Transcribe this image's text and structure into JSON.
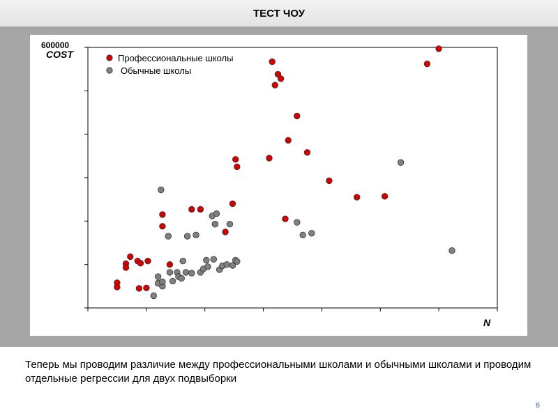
{
  "header": {
    "title": "ТЕСТ ЧОУ"
  },
  "caption": "Теперь мы проводим различие между профессиональными школами и обычными школами и проводим отдельные регрессии для двух подвыборки",
  "page_number": "6",
  "colors": {
    "professional": "#d40000",
    "regular": "#808080",
    "band": "#a6a6a6",
    "page_number": "#3a6ea5"
  },
  "chart_data": {
    "type": "scatter",
    "xlabel": "N",
    "ylabel": "COST",
    "ytick_label": "600000",
    "xlim": [
      0,
      1400
    ],
    "ylim": [
      0,
      600000
    ],
    "grid": false,
    "legend_position": "top-left",
    "series": [
      {
        "name": "Профессиональные школы",
        "color": "#d40000",
        "points": [
          [
            100,
            58000
          ],
          [
            100,
            48000
          ],
          [
            130,
            102000
          ],
          [
            130,
            93000
          ],
          [
            145,
            118000
          ],
          [
            170,
            108000
          ],
          [
            175,
            45000
          ],
          [
            180,
            103000
          ],
          [
            200,
            46000
          ],
          [
            205,
            108000
          ],
          [
            255,
            215000
          ],
          [
            255,
            188000
          ],
          [
            280,
            100000
          ],
          [
            355,
            227000
          ],
          [
            385,
            227000
          ],
          [
            435,
            193000
          ],
          [
            470,
            175000
          ],
          [
            495,
            240000
          ],
          [
            505,
            342000
          ],
          [
            510,
            325000
          ],
          [
            620,
            345000
          ],
          [
            630,
            567000
          ],
          [
            640,
            513000
          ],
          [
            650,
            538000
          ],
          [
            660,
            528000
          ],
          [
            675,
            205000
          ],
          [
            685,
            386000
          ],
          [
            715,
            442000
          ],
          [
            750,
            358000
          ],
          [
            825,
            293000
          ],
          [
            920,
            255000
          ],
          [
            1015,
            257000
          ],
          [
            1160,
            562000
          ],
          [
            1200,
            597000
          ]
        ]
      },
      {
        "name": "Обычные школы",
        "color": "#808080",
        "points": [
          [
            225,
            28000
          ],
          [
            240,
            72000
          ],
          [
            240,
            57000
          ],
          [
            250,
            272000
          ],
          [
            255,
            50000
          ],
          [
            255,
            60000
          ],
          [
            275,
            165000
          ],
          [
            280,
            82000
          ],
          [
            290,
            62000
          ],
          [
            305,
            82000
          ],
          [
            310,
            72000
          ],
          [
            320,
            68000
          ],
          [
            325,
            108000
          ],
          [
            335,
            82000
          ],
          [
            340,
            165000
          ],
          [
            355,
            80000
          ],
          [
            370,
            168000
          ],
          [
            385,
            82000
          ],
          [
            395,
            90000
          ],
          [
            405,
            110000
          ],
          [
            410,
            95000
          ],
          [
            425,
            212000
          ],
          [
            430,
            112000
          ],
          [
            435,
            193000
          ],
          [
            440,
            217000
          ],
          [
            450,
            88000
          ],
          [
            460,
            97000
          ],
          [
            475,
            100000
          ],
          [
            485,
            193000
          ],
          [
            495,
            98000
          ],
          [
            505,
            110000
          ],
          [
            510,
            107000
          ],
          [
            715,
            197000
          ],
          [
            735,
            168000
          ],
          [
            765,
            172000
          ],
          [
            1070,
            335000
          ],
          [
            1245,
            132000
          ]
        ]
      }
    ]
  }
}
